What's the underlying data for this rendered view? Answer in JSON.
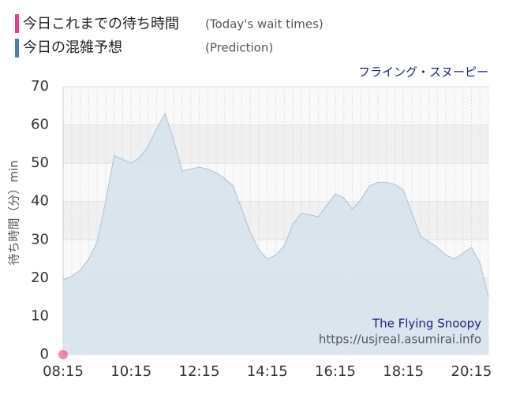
{
  "chart_data": {
    "type": "area",
    "attraction": "フライング・スヌーピー",
    "attraction_en": "The Flying Snoopy",
    "source": "https://usjreal.asumirai.info",
    "y_label": "待ち時間（分）min",
    "categories": [
      "08:15",
      null,
      null,
      null,
      null,
      null,
      null,
      null,
      "10:15",
      null,
      null,
      null,
      null,
      null,
      null,
      null,
      "12:15",
      null,
      null,
      null,
      null,
      null,
      null,
      null,
      "14:15",
      null,
      null,
      null,
      null,
      null,
      null,
      null,
      "16:15",
      null,
      null,
      null,
      null,
      null,
      null,
      null,
      "18:15",
      null,
      null,
      null,
      null,
      null,
      null,
      null,
      "20:15",
      null,
      null
    ],
    "series": [
      {
        "name": "今日これまでの待ち時間",
        "name_en": "(Today's wait times)",
        "color": "#ee3a8c",
        "values": [
          0,
          null,
          null,
          null,
          null,
          null,
          null,
          null,
          null,
          null,
          null,
          null,
          null,
          null,
          null,
          null,
          null,
          null,
          null,
          null,
          null,
          null,
          null,
          null,
          null,
          null,
          null,
          null,
          null,
          null,
          null,
          null,
          null,
          null,
          null,
          null,
          null,
          null,
          null,
          null,
          null,
          null,
          null,
          null,
          null,
          null,
          null,
          null,
          null,
          null,
          null
        ]
      },
      {
        "name": "今日の混雑予想",
        "name_en": "(Prediction)",
        "color": "#4a7fb0",
        "values": [
          19.5,
          20.5,
          22,
          25,
          29.5,
          40,
          52,
          51,
          50,
          51.5,
          54.5,
          59,
          63,
          56,
          48,
          48.5,
          49,
          48.5,
          47.5,
          46,
          44,
          38,
          32,
          27.5,
          25,
          26,
          28.5,
          34,
          37,
          36.5,
          36,
          39,
          42,
          41,
          38,
          40.5,
          44,
          45,
          45,
          44.5,
          43,
          37,
          31,
          29.5,
          28,
          26,
          25,
          26.5,
          28,
          24,
          15
        ]
      }
    ],
    "ylim": [
      0,
      70
    ],
    "yticks": [
      0,
      10,
      20,
      30,
      40,
      50,
      60,
      70
    ],
    "grid": true
  }
}
